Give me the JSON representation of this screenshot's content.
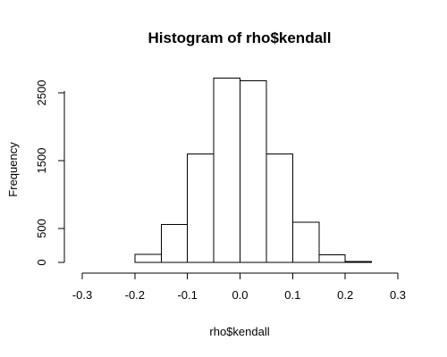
{
  "chart_data": {
    "type": "bar",
    "title": "Histogram of rho$kendall",
    "xlabel": "rho$kendall",
    "ylabel": "Frequency",
    "bin_edges": [
      -0.3,
      -0.25,
      -0.2,
      -0.15,
      -0.1,
      -0.05,
      0.0,
      0.05,
      0.1,
      0.15,
      0.2,
      0.25,
      0.3
    ],
    "values": [
      0,
      0,
      120,
      560,
      1600,
      2720,
      2680,
      1600,
      590,
      110,
      15,
      0
    ],
    "xlim": [
      -0.3,
      0.3
    ],
    "ylim": [
      0,
      2750
    ],
    "xticks": [
      -0.3,
      -0.2,
      -0.1,
      0.0,
      0.1,
      0.2,
      0.3
    ],
    "xtick_labels": [
      "-0.3",
      "-0.2",
      "-0.1",
      "0.0",
      "0.1",
      "0.2",
      "0.3"
    ],
    "yticks": [
      0,
      500,
      1500,
      2500
    ],
    "ytick_labels": [
      "0",
      "500",
      "1500",
      "2500"
    ],
    "grid": false,
    "legend": "none"
  }
}
